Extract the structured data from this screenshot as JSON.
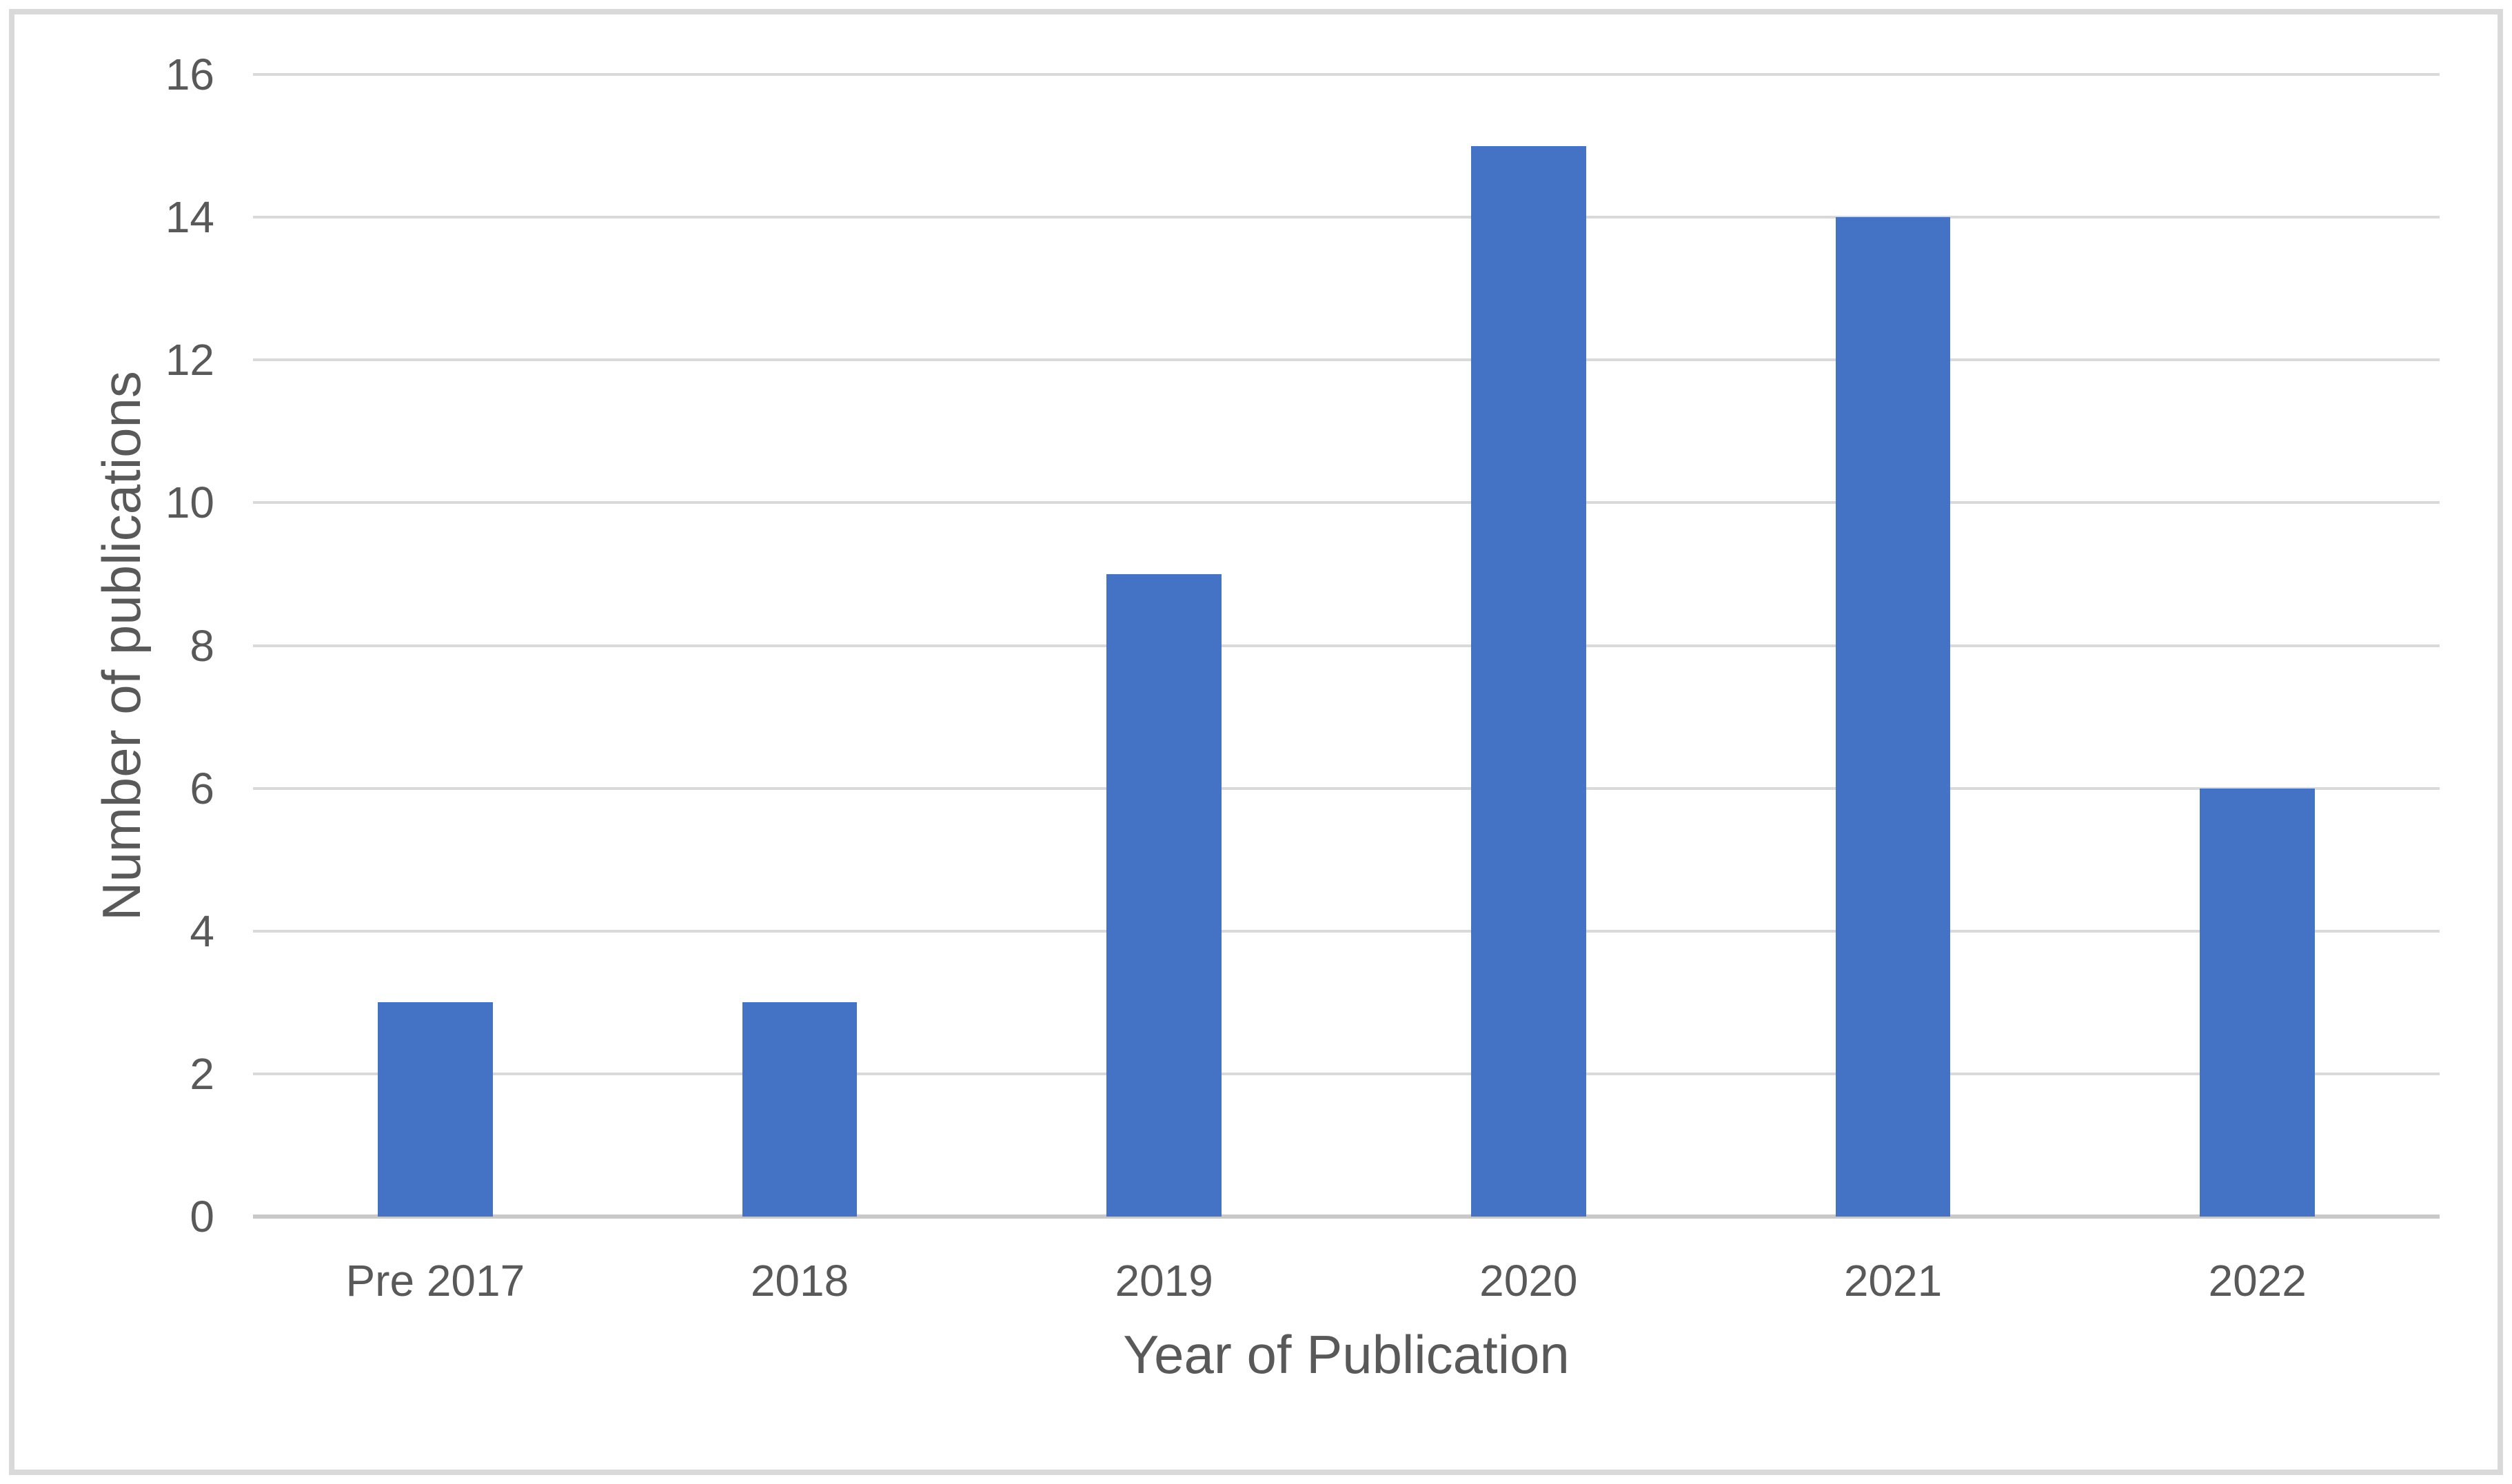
{
  "chart_data": {
    "type": "bar",
    "title": "",
    "categories": [
      "Pre 2017",
      "2018",
      "2019",
      "2020",
      "2021",
      "2022"
    ],
    "values": [
      3,
      3,
      9,
      15,
      14,
      6
    ],
    "xlabel": "Year of Publication",
    "ylabel": "Number of publications",
    "ylim": [
      0,
      16
    ],
    "yticks": [
      0,
      2,
      4,
      6,
      8,
      10,
      12,
      14,
      16
    ],
    "grid": "horizontal-only",
    "legend": "none",
    "colors": {
      "bar": "#4472C4",
      "gridline": "#D9D9D9",
      "axis_line": "#C9C9C9",
      "text": "#595959",
      "figure_border": "#D9D9D9",
      "background": "#FFFFFF"
    },
    "layout": {
      "bar_width_fraction_of_slot": 0.315
    }
  }
}
